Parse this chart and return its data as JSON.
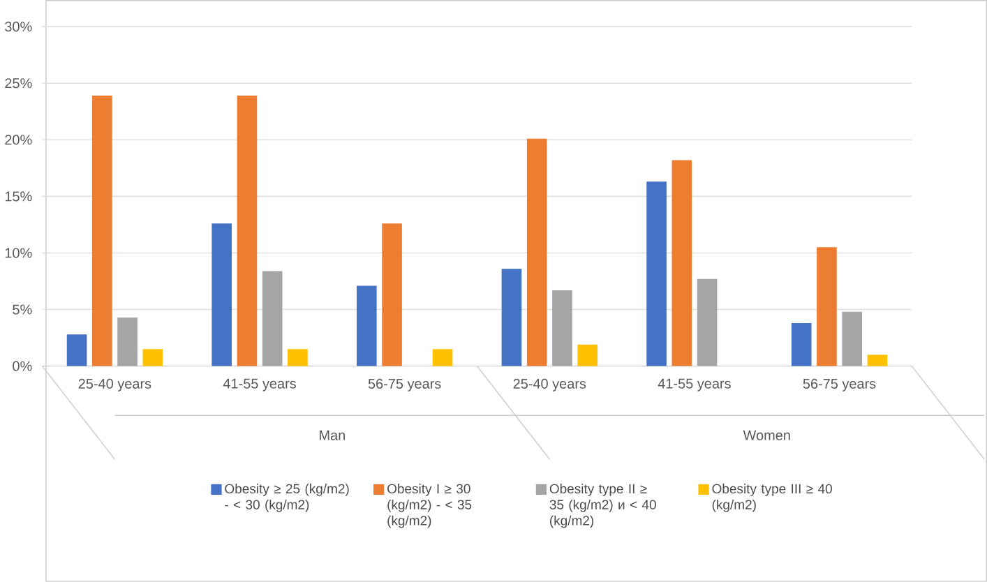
{
  "chart_data": {
    "type": "bar",
    "categories": [
      "25-40 years",
      "41-55 years",
      "56-75 years",
      "25-40 years",
      "41-55 years",
      "56-75 years"
    ],
    "annotations": [
      "Man",
      "Women"
    ],
    "series": [
      {
        "name": "Obesity ≥ 25 (kg/m2) - < 30 (kg/m2)",
        "color": "#4472c4",
        "values": [
          2.8,
          12.6,
          7.1,
          8.6,
          16.3,
          3.8
        ]
      },
      {
        "name": "Obesity I ≥ 30 (kg/m2) - < 35 (kg/m2)",
        "color": "#ed7d31",
        "values": [
          23.9,
          23.9,
          12.6,
          20.1,
          18.2,
          10.5
        ]
      },
      {
        "name": "Obesity type II ≥ 35 (kg/m2) и < 40 (kg/m2)",
        "color": "#a5a5a5",
        "values": [
          4.3,
          8.4,
          0,
          6.7,
          7.7,
          4.8
        ]
      },
      {
        "name": "Obesity type III ≥ 40 (kg/m2)",
        "color": "#ffc000",
        "values": [
          1.5,
          1.5,
          1.5,
          1.9,
          0,
          1.0
        ]
      }
    ],
    "ylim": [
      0,
      30
    ],
    "yticks": [
      {
        "value": 0,
        "label": "0%"
      },
      {
        "value": 5,
        "label": "5%"
      },
      {
        "value": 10,
        "label": "10%"
      },
      {
        "value": 15,
        "label": "15%"
      },
      {
        "value": 20,
        "label": "20%"
      },
      {
        "value": 25,
        "label": "25%"
      },
      {
        "value": 30,
        "label": "30%"
      }
    ],
    "grid": "y",
    "legend": "bottom"
  }
}
